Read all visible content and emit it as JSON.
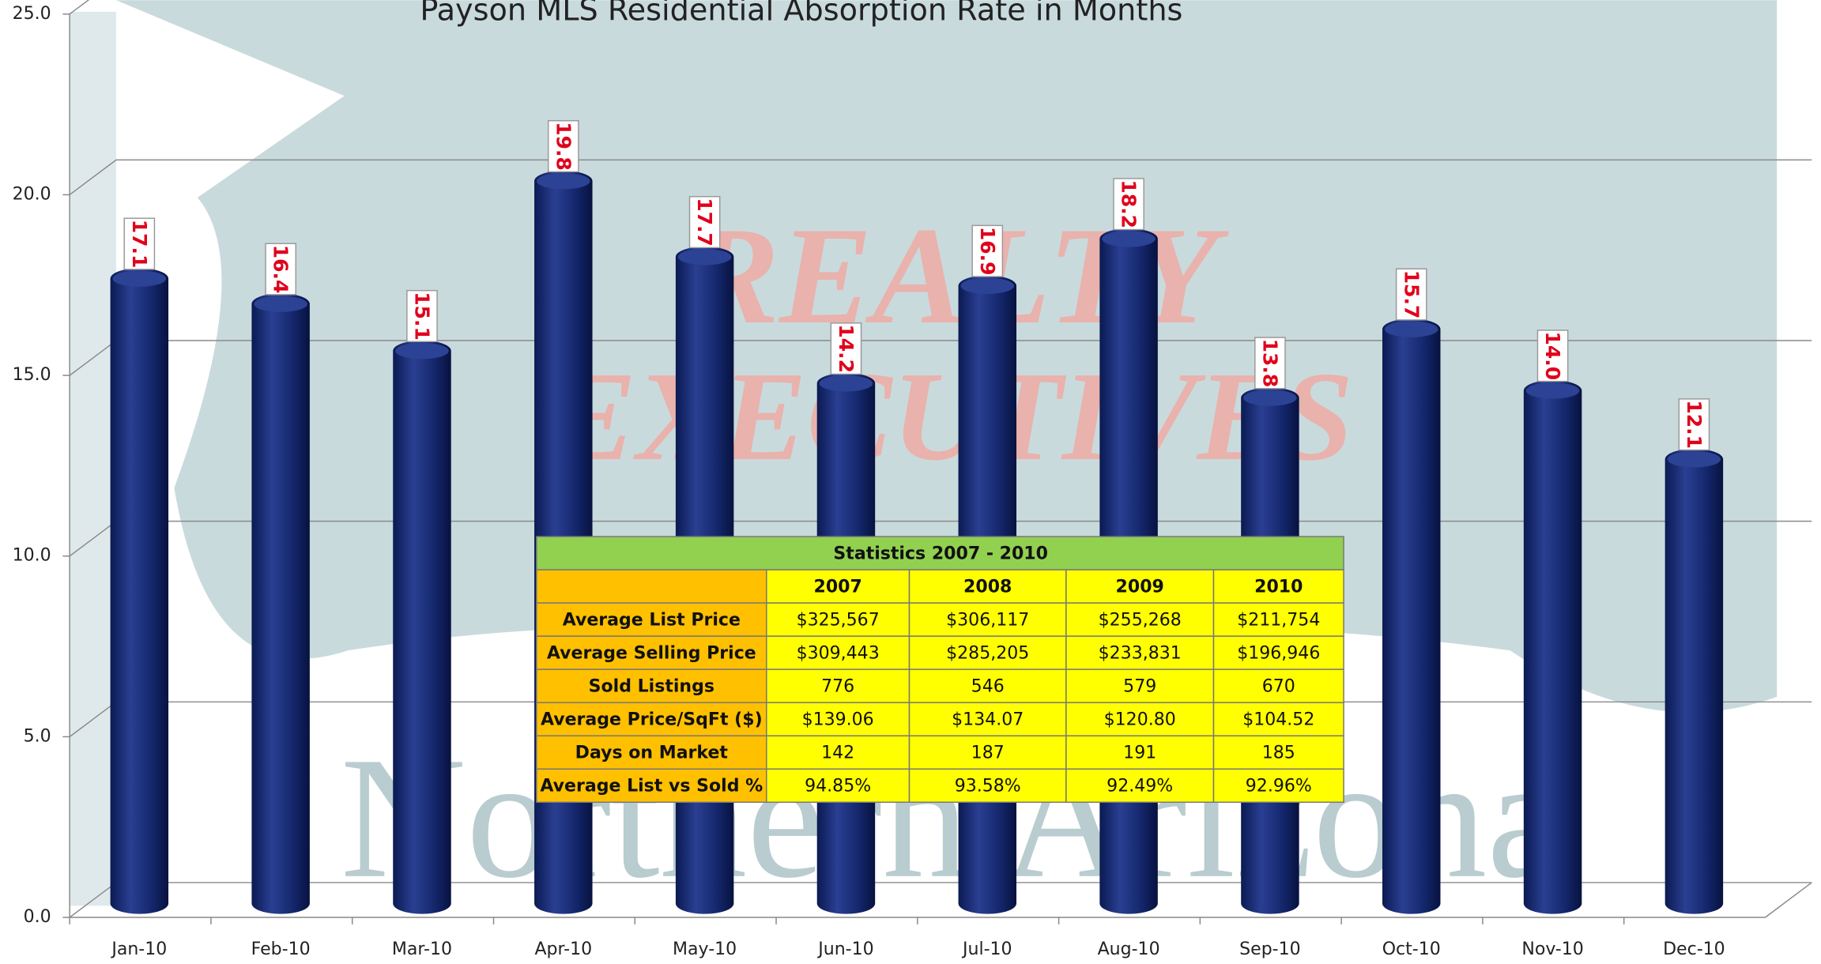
{
  "chart_data": {
    "type": "bar",
    "title": "Payson MLS Residential Absorption Rate in Months",
    "categories": [
      "Jan-10",
      "Feb-10",
      "Mar-10",
      "Apr-10",
      "May-10",
      "Jun-10",
      "Jul-10",
      "Aug-10",
      "Sep-10",
      "Oct-10",
      "Nov-10",
      "Dec-10"
    ],
    "values": [
      17.1,
      16.4,
      15.1,
      19.8,
      17.7,
      14.2,
      16.9,
      18.2,
      13.8,
      15.7,
      14.0,
      12.1
    ],
    "value_labels": [
      "17.1",
      "16.4",
      "15.1",
      "19.8",
      "17.7",
      "14.2",
      "16.9",
      "18.2",
      "13.8",
      "15.7",
      "14.0",
      "12.1"
    ],
    "color": "#15286e",
    "ylim": [
      0,
      25
    ],
    "yticks": [
      {
        "value": 0,
        "label": "0.0"
      },
      {
        "value": 5,
        "label": "5.0"
      },
      {
        "value": 10,
        "label": "10.0"
      },
      {
        "value": 15,
        "label": "15.0"
      },
      {
        "value": 20,
        "label": "20.0"
      },
      {
        "value": 25,
        "label": "25.0"
      }
    ],
    "grid": true
  },
  "watermark": [
    "REALTY",
    "EXECUTIVES",
    "Northern Arizona"
  ],
  "table": {
    "title": "Statistics 2007 - 2010",
    "header": [
      "2007",
      "2008",
      "2009",
      "2010"
    ],
    "rows": [
      [
        "Average List Price",
        "$325,567",
        "$306,117",
        "$255,268",
        "$211,754"
      ],
      [
        "Average Selling Price",
        "$309,443",
        "$285,205",
        "$233,831",
        "$196,946"
      ],
      [
        "Sold Listings",
        "776",
        "546",
        "579",
        "670"
      ],
      [
        "Average Price/SqFt ($)",
        "$139.06",
        "$134.07",
        "$120.80",
        "$104.52"
      ],
      [
        "Days on Market",
        "142",
        "187",
        "191",
        "185"
      ],
      [
        "Average List vs Sold %",
        "94.85%",
        "93.58%",
        "92.49%",
        "92.96%"
      ]
    ]
  }
}
